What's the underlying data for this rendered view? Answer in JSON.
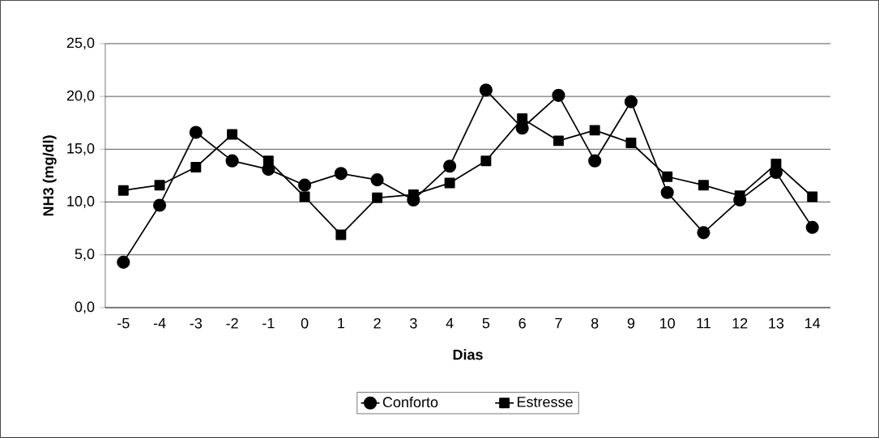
{
  "chart_data": {
    "type": "line",
    "xlabel": "Dias",
    "ylabel": "NH3 (mg/dl)",
    "categories": [
      "-5",
      "-4",
      "-3",
      "-2",
      "-1",
      "0",
      "1",
      "2",
      "3",
      "4",
      "5",
      "6",
      "7",
      "8",
      "9",
      "10",
      "11",
      "12",
      "13",
      "14"
    ],
    "series": [
      {
        "name": "Conforto",
        "color": "#000000",
        "marker": "circle",
        "values": [
          4.3,
          9.7,
          16.6,
          13.9,
          13.1,
          11.6,
          12.7,
          12.1,
          10.2,
          13.4,
          20.6,
          17.0,
          20.1,
          13.9,
          19.5,
          10.9,
          7.1,
          10.2,
          12.8,
          7.6
        ]
      },
      {
        "name": "Estresse",
        "color": "#000000",
        "marker": "square",
        "values": [
          11.1,
          11.6,
          13.3,
          16.4,
          13.9,
          10.5,
          6.9,
          10.4,
          10.7,
          11.8,
          13.9,
          17.9,
          15.8,
          16.8,
          15.6,
          12.4,
          11.6,
          10.6,
          13.6,
          10.5
        ]
      }
    ],
    "ylim": [
      0,
      25
    ],
    "yticks": [
      {
        "value": 0,
        "label": "0,0"
      },
      {
        "value": 5,
        "label": "5,0"
      },
      {
        "value": 10,
        "label": "10,0"
      },
      {
        "value": 15,
        "label": "15,0"
      },
      {
        "value": 20,
        "label": "20,0"
      },
      {
        "value": 25,
        "label": "25,0"
      }
    ],
    "grid": "y",
    "legend": "bottom",
    "line_style": "solid"
  }
}
